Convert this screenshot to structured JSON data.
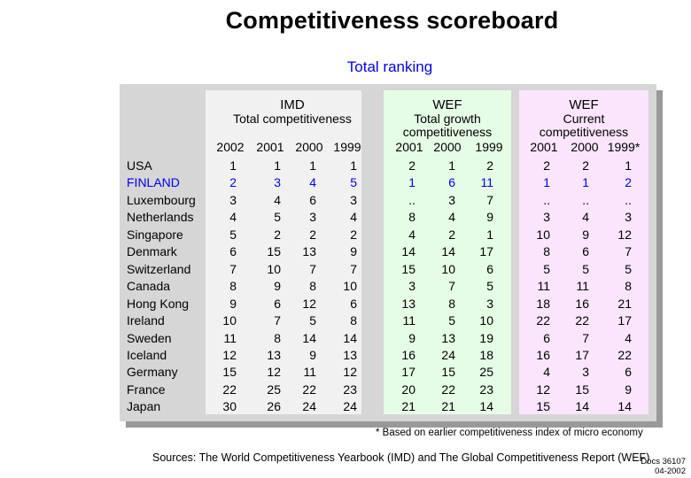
{
  "title": "Competitiveness scoreboard",
  "subtitle": "Total ranking",
  "chart_data": {
    "type": "table",
    "groups": [
      {
        "name": "IMD",
        "subtitle": "Total competitiveness",
        "years": [
          "2002",
          "2001",
          "2000",
          "1999"
        ]
      },
      {
        "name": "WEF",
        "subtitle": "Total growth\ncompetitiveness",
        "years": [
          "2001",
          "2000",
          "1999"
        ]
      },
      {
        "name": "WEF",
        "subtitle": "Current\ncompetitiveness",
        "years": [
          "2001",
          "2000",
          "1999*"
        ]
      }
    ],
    "rows": [
      {
        "country": "USA",
        "values": [
          "1",
          "1",
          "1",
          "1",
          "2",
          "1",
          "2",
          "2",
          "2",
          "1"
        ]
      },
      {
        "country": "FINLAND",
        "highlight": true,
        "values": [
          "2",
          "3",
          "4",
          "5",
          "1",
          "6",
          "11",
          "1",
          "1",
          "2"
        ]
      },
      {
        "country": "Luxembourg",
        "values": [
          "3",
          "4",
          "6",
          "3",
          "..",
          "3",
          "7",
          "..",
          "..",
          ".."
        ]
      },
      {
        "country": "Netherlands",
        "values": [
          "4",
          "5",
          "3",
          "4",
          "8",
          "4",
          "9",
          "3",
          "4",
          "3"
        ]
      },
      {
        "country": "Singapore",
        "values": [
          "5",
          "2",
          "2",
          "2",
          "4",
          "2",
          "1",
          "10",
          "9",
          "12"
        ]
      },
      {
        "country": "Denmark",
        "values": [
          "6",
          "15",
          "13",
          "9",
          "14",
          "14",
          "17",
          "8",
          "6",
          "7"
        ]
      },
      {
        "country": "Switzerland",
        "values": [
          "7",
          "10",
          "7",
          "7",
          "15",
          "10",
          "6",
          "5",
          "5",
          "5"
        ]
      },
      {
        "country": "Canada",
        "values": [
          "8",
          "9",
          "8",
          "10",
          "3",
          "7",
          "5",
          "11",
          "11",
          "8"
        ]
      },
      {
        "country": "Hong Kong",
        "values": [
          "9",
          "6",
          "12",
          "6",
          "13",
          "8",
          "3",
          "18",
          "16",
          "21"
        ]
      },
      {
        "country": "Ireland",
        "values": [
          "10",
          "7",
          "5",
          "8",
          "11",
          "5",
          "10",
          "22",
          "22",
          "17"
        ]
      },
      {
        "country": "Sweden",
        "values": [
          "11",
          "8",
          "14",
          "14",
          "9",
          "13",
          "19",
          "6",
          "7",
          "4"
        ]
      },
      {
        "country": "Iceland",
        "values": [
          "12",
          "13",
          "9",
          "13",
          "16",
          "24",
          "18",
          "16",
          "17",
          "22"
        ]
      },
      {
        "country": "Germany",
        "values": [
          "15",
          "12",
          "11",
          "12",
          "17",
          "15",
          "25",
          "4",
          "3",
          "6"
        ]
      },
      {
        "country": "France",
        "values": [
          "22",
          "25",
          "22",
          "23",
          "20",
          "22",
          "23",
          "12",
          "15",
          "9"
        ]
      },
      {
        "country": "Japan",
        "values": [
          "30",
          "26",
          "24",
          "24",
          "21",
          "21",
          "14",
          "15",
          "14",
          "14"
        ]
      }
    ]
  },
  "colors": {
    "highlight": "#0000ee",
    "imd_band": "#f1f1f1",
    "wef_growth_band": "#e5fde5",
    "wef_current_band": "#fae5fc",
    "panel": "#d6d6d6"
  },
  "footnote": "* Based on earlier competitiveness index of micro economy",
  "sources": "Sources: The World Competitiveness Yearbook (IMD) and The Global Competitiveness Report (WEF)",
  "doc_ref": {
    "line1": "Docs 36107",
    "line2": "04-2002"
  }
}
